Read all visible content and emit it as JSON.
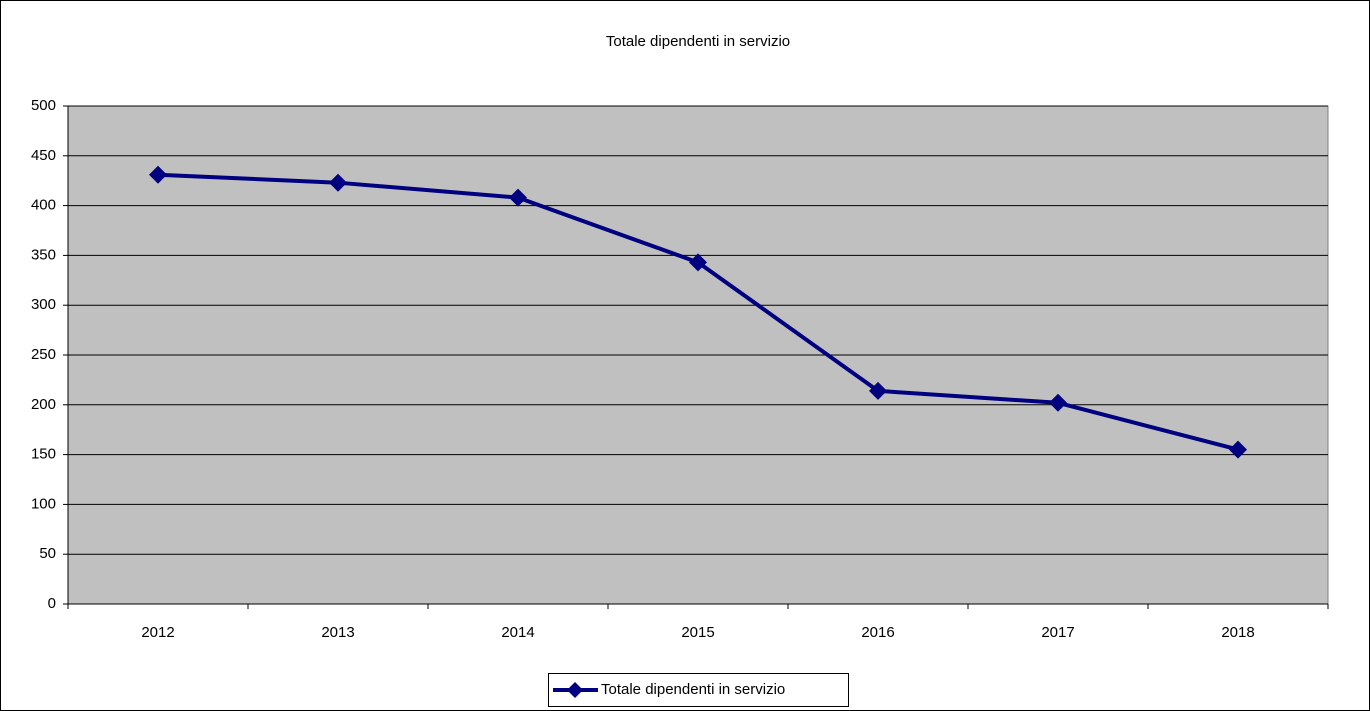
{
  "chart_data": {
    "type": "line",
    "title": "Totale dipendenti in servizio",
    "categories": [
      "2012",
      "2013",
      "2014",
      "2015",
      "2016",
      "2017",
      "2018"
    ],
    "series": [
      {
        "name": "Totale dipendenti in servizio",
        "color": "#000080",
        "values": [
          431,
          423,
          408,
          343,
          214,
          202,
          155
        ]
      }
    ],
    "ylim": [
      0,
      500
    ],
    "yticks": [
      0,
      50,
      100,
      150,
      200,
      250,
      300,
      350,
      400,
      450,
      500
    ],
    "grid": true,
    "legend": "bottom"
  }
}
